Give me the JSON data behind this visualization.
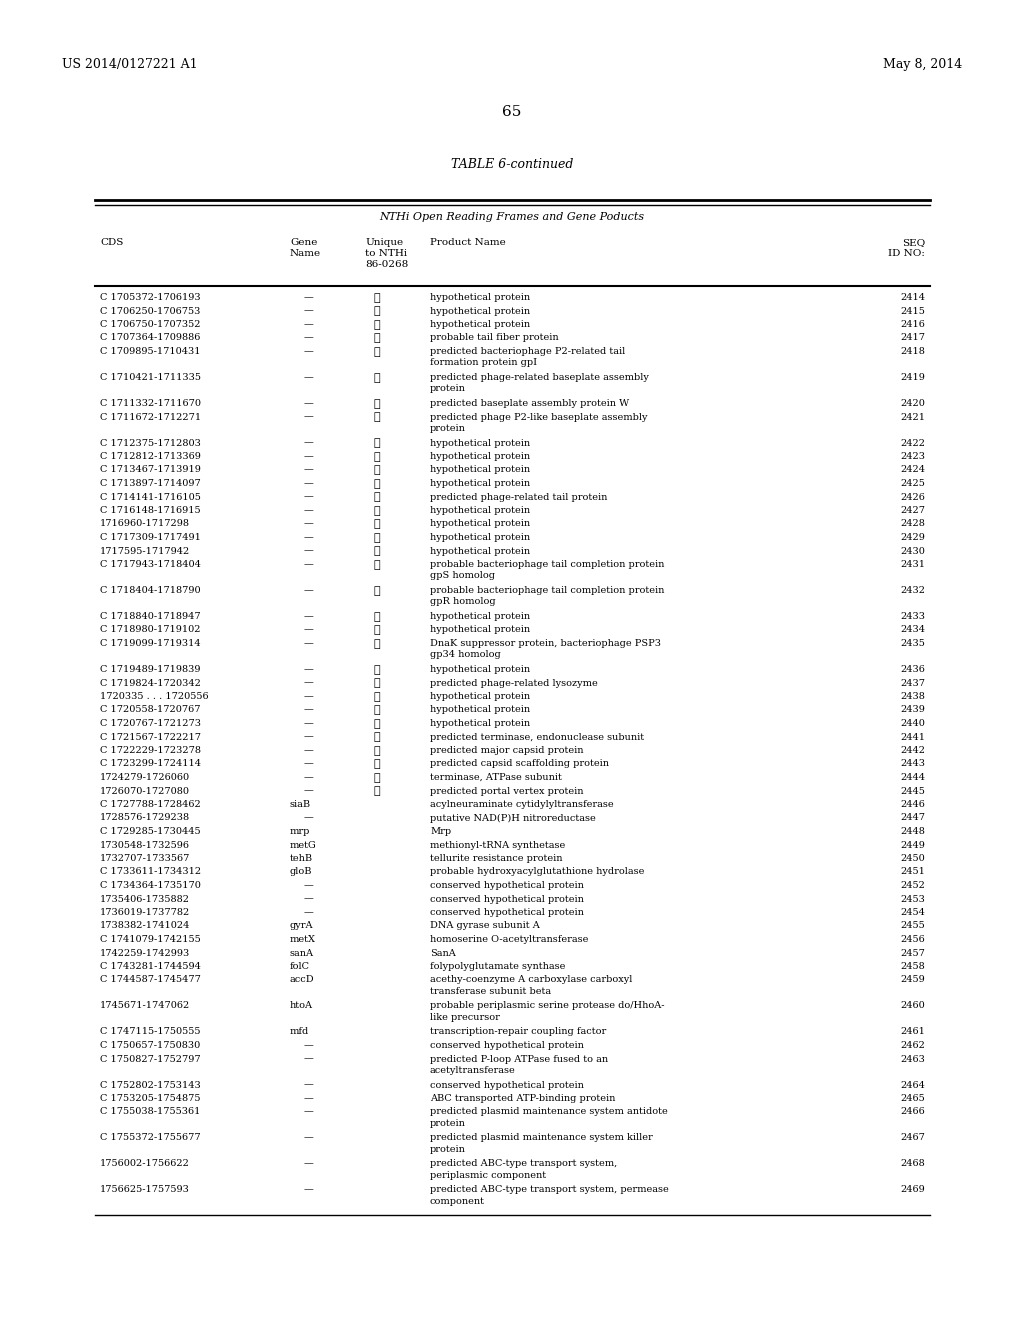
{
  "header_left": "US 2014/0127221 A1",
  "header_right": "May 8, 2014",
  "page_number": "65",
  "table_title": "TABLE 6-continued",
  "table_subtitle": "NTHi Open Reading Frames and Gene Poducts",
  "rows": [
    [
      "C 1705372-1706193",
      "—",
      "✓",
      "hypothetical protein",
      "2414"
    ],
    [
      "C 1706250-1706753",
      "—",
      "✓",
      "hypothetical protein",
      "2415"
    ],
    [
      "C 1706750-1707352",
      "—",
      "✓",
      "hypothetical protein",
      "2416"
    ],
    [
      "C 1707364-1709886",
      "—",
      "✓",
      "probable tail fiber protein",
      "2417"
    ],
    [
      "C 1709895-1710431",
      "—",
      "✓",
      "predicted bacteriophage P2-related tail\nformation protein gpI",
      "2418"
    ],
    [
      "C 1710421-1711335",
      "—",
      "✓",
      "predicted phage-related baseplate assembly\nprotein",
      "2419"
    ],
    [
      "C 1711332-1711670",
      "—",
      "✓",
      "predicted baseplate assembly protein W",
      "2420"
    ],
    [
      "C 1711672-1712271",
      "—",
      "✓",
      "predicted phage P2-like baseplate assembly\nprotein",
      "2421"
    ],
    [
      "C 1712375-1712803",
      "—",
      "✓",
      "hypothetical protein",
      "2422"
    ],
    [
      "C 1712812-1713369",
      "—",
      "✓",
      "hypothetical protein",
      "2423"
    ],
    [
      "C 1713467-1713919",
      "—",
      "✓",
      "hypothetical protein",
      "2424"
    ],
    [
      "C 1713897-1714097",
      "—",
      "✓",
      "hypothetical protein",
      "2425"
    ],
    [
      "C 1714141-1716105",
      "—",
      "✓",
      "predicted phage-related tail protein",
      "2426"
    ],
    [
      "C 1716148-1716915",
      "—",
      "✓",
      "hypothetical protein",
      "2427"
    ],
    [
      "1716960-1717298",
      "—",
      "✓",
      "hypothetical protein",
      "2428"
    ],
    [
      "C 1717309-1717491",
      "—",
      "✓",
      "hypothetical protein",
      "2429"
    ],
    [
      "1717595-1717942",
      "—",
      "✓",
      "hypothetical protein",
      "2430"
    ],
    [
      "C 1717943-1718404",
      "—",
      "✓",
      "probable bacteriophage tail completion protein\ngpS homolog",
      "2431"
    ],
    [
      "C 1718404-1718790",
      "—",
      "✓",
      "probable bacteriophage tail completion protein\ngpR homolog",
      "2432"
    ],
    [
      "C 1718840-1718947",
      "—",
      "✓",
      "hypothetical protein",
      "2433"
    ],
    [
      "C 1718980-1719102",
      "—",
      "✓",
      "hypothetical protein",
      "2434"
    ],
    [
      "C 1719099-1719314",
      "—",
      "✓",
      "DnaK suppressor protein, bacteriophage PSP3\ngp34 homolog",
      "2435"
    ],
    [
      "C 1719489-1719839",
      "—",
      "✓",
      "hypothetical protein",
      "2436"
    ],
    [
      "C 1719824-1720342",
      "—",
      "✓",
      "predicted phage-related lysozyme",
      "2437"
    ],
    [
      "1720335 . . . 1720556",
      "—",
      "✓",
      "hypothetical protein",
      "2438"
    ],
    [
      "C 1720558-1720767",
      "—",
      "✓",
      "hypothetical protein",
      "2439"
    ],
    [
      "C 1720767-1721273",
      "—",
      "✓",
      "hypothetical protein",
      "2440"
    ],
    [
      "C 1721567-1722217",
      "—",
      "✓",
      "predicted terminase, endonuclease subunit",
      "2441"
    ],
    [
      "C 1722229-1723278",
      "—",
      "✓",
      "predicted major capsid protein",
      "2442"
    ],
    [
      "C 1723299-1724114",
      "—",
      "✓",
      "predicted capsid scaffolding protein",
      "2443"
    ],
    [
      "1724279-1726060",
      "—",
      "✓",
      "terminase, ATPase subunit",
      "2444"
    ],
    [
      "1726070-1727080",
      "—",
      "✓",
      "predicted portal vertex protein",
      "2445"
    ],
    [
      "C 1727788-1728462",
      "siaB",
      "",
      "acylneuraminate cytidylyltransferase",
      "2446"
    ],
    [
      "1728576-1729238",
      "—",
      "",
      "putative NAD(P)H nitroreductase",
      "2447"
    ],
    [
      "C 1729285-1730445",
      "mrp",
      "",
      "Mrp",
      "2448"
    ],
    [
      "1730548-1732596",
      "metG",
      "",
      "methionyl-tRNA synthetase",
      "2449"
    ],
    [
      "1732707-1733567",
      "tehB",
      "",
      "tellurite resistance protein",
      "2450"
    ],
    [
      "C 1733611-1734312",
      "gloB",
      "",
      "probable hydroxyacylglutathione hydrolase",
      "2451"
    ],
    [
      "C 1734364-1735170",
      "—",
      "",
      "conserved hypothetical protein",
      "2452"
    ],
    [
      "1735406-1735882",
      "—",
      "",
      "conserved hypothetical protein",
      "2453"
    ],
    [
      "1736019-1737782",
      "—",
      "",
      "conserved hypothetical protein",
      "2454"
    ],
    [
      "1738382-1741024",
      "gyrA",
      "",
      "DNA gyrase subunit A",
      "2455"
    ],
    [
      "C 1741079-1742155",
      "metX",
      "",
      "homoserine O-acetyltransferase",
      "2456"
    ],
    [
      "1742259-1742993",
      "sanA",
      "",
      "SanA",
      "2457"
    ],
    [
      "C 1743281-1744594",
      "folC",
      "",
      "folypolyglutamate synthase",
      "2458"
    ],
    [
      "C 1744587-1745477",
      "accD",
      "",
      "acethy-coenzyme A carboxylase carboxyl\ntransferase subunit beta",
      "2459"
    ],
    [
      "1745671-1747062",
      "htoA",
      "",
      "probable periplasmic serine protease do/HhoA-\nlike precursor",
      "2460"
    ],
    [
      "C 1747115-1750555",
      "mfd",
      "",
      "transcription-repair coupling factor",
      "2461"
    ],
    [
      "C 1750657-1750830",
      "—",
      "",
      "conserved hypothetical protein",
      "2462"
    ],
    [
      "C 1750827-1752797",
      "—",
      "",
      "predicted P-loop ATPase fused to an\nacetyltransferase",
      "2463"
    ],
    [
      "C 1752802-1753143",
      "—",
      "",
      "conserved hypothetical protein",
      "2464"
    ],
    [
      "C 1753205-1754875",
      "—",
      "",
      "ABC transported ATP-binding protein",
      "2465"
    ],
    [
      "C 1755038-1755361",
      "—",
      "",
      "predicted plasmid maintenance system antidote\nprotein",
      "2466"
    ],
    [
      "C 1755372-1755677",
      "—",
      "",
      "predicted plasmid maintenance system killer\nprotein",
      "2467"
    ],
    [
      "1756002-1756622",
      "—",
      "",
      "predicted ABC-type transport system,\nperiplasmic component",
      "2468"
    ],
    [
      "1756625-1757593",
      "—",
      "",
      "predicted ABC-type transport system, permease\ncomponent",
      "2469"
    ]
  ]
}
